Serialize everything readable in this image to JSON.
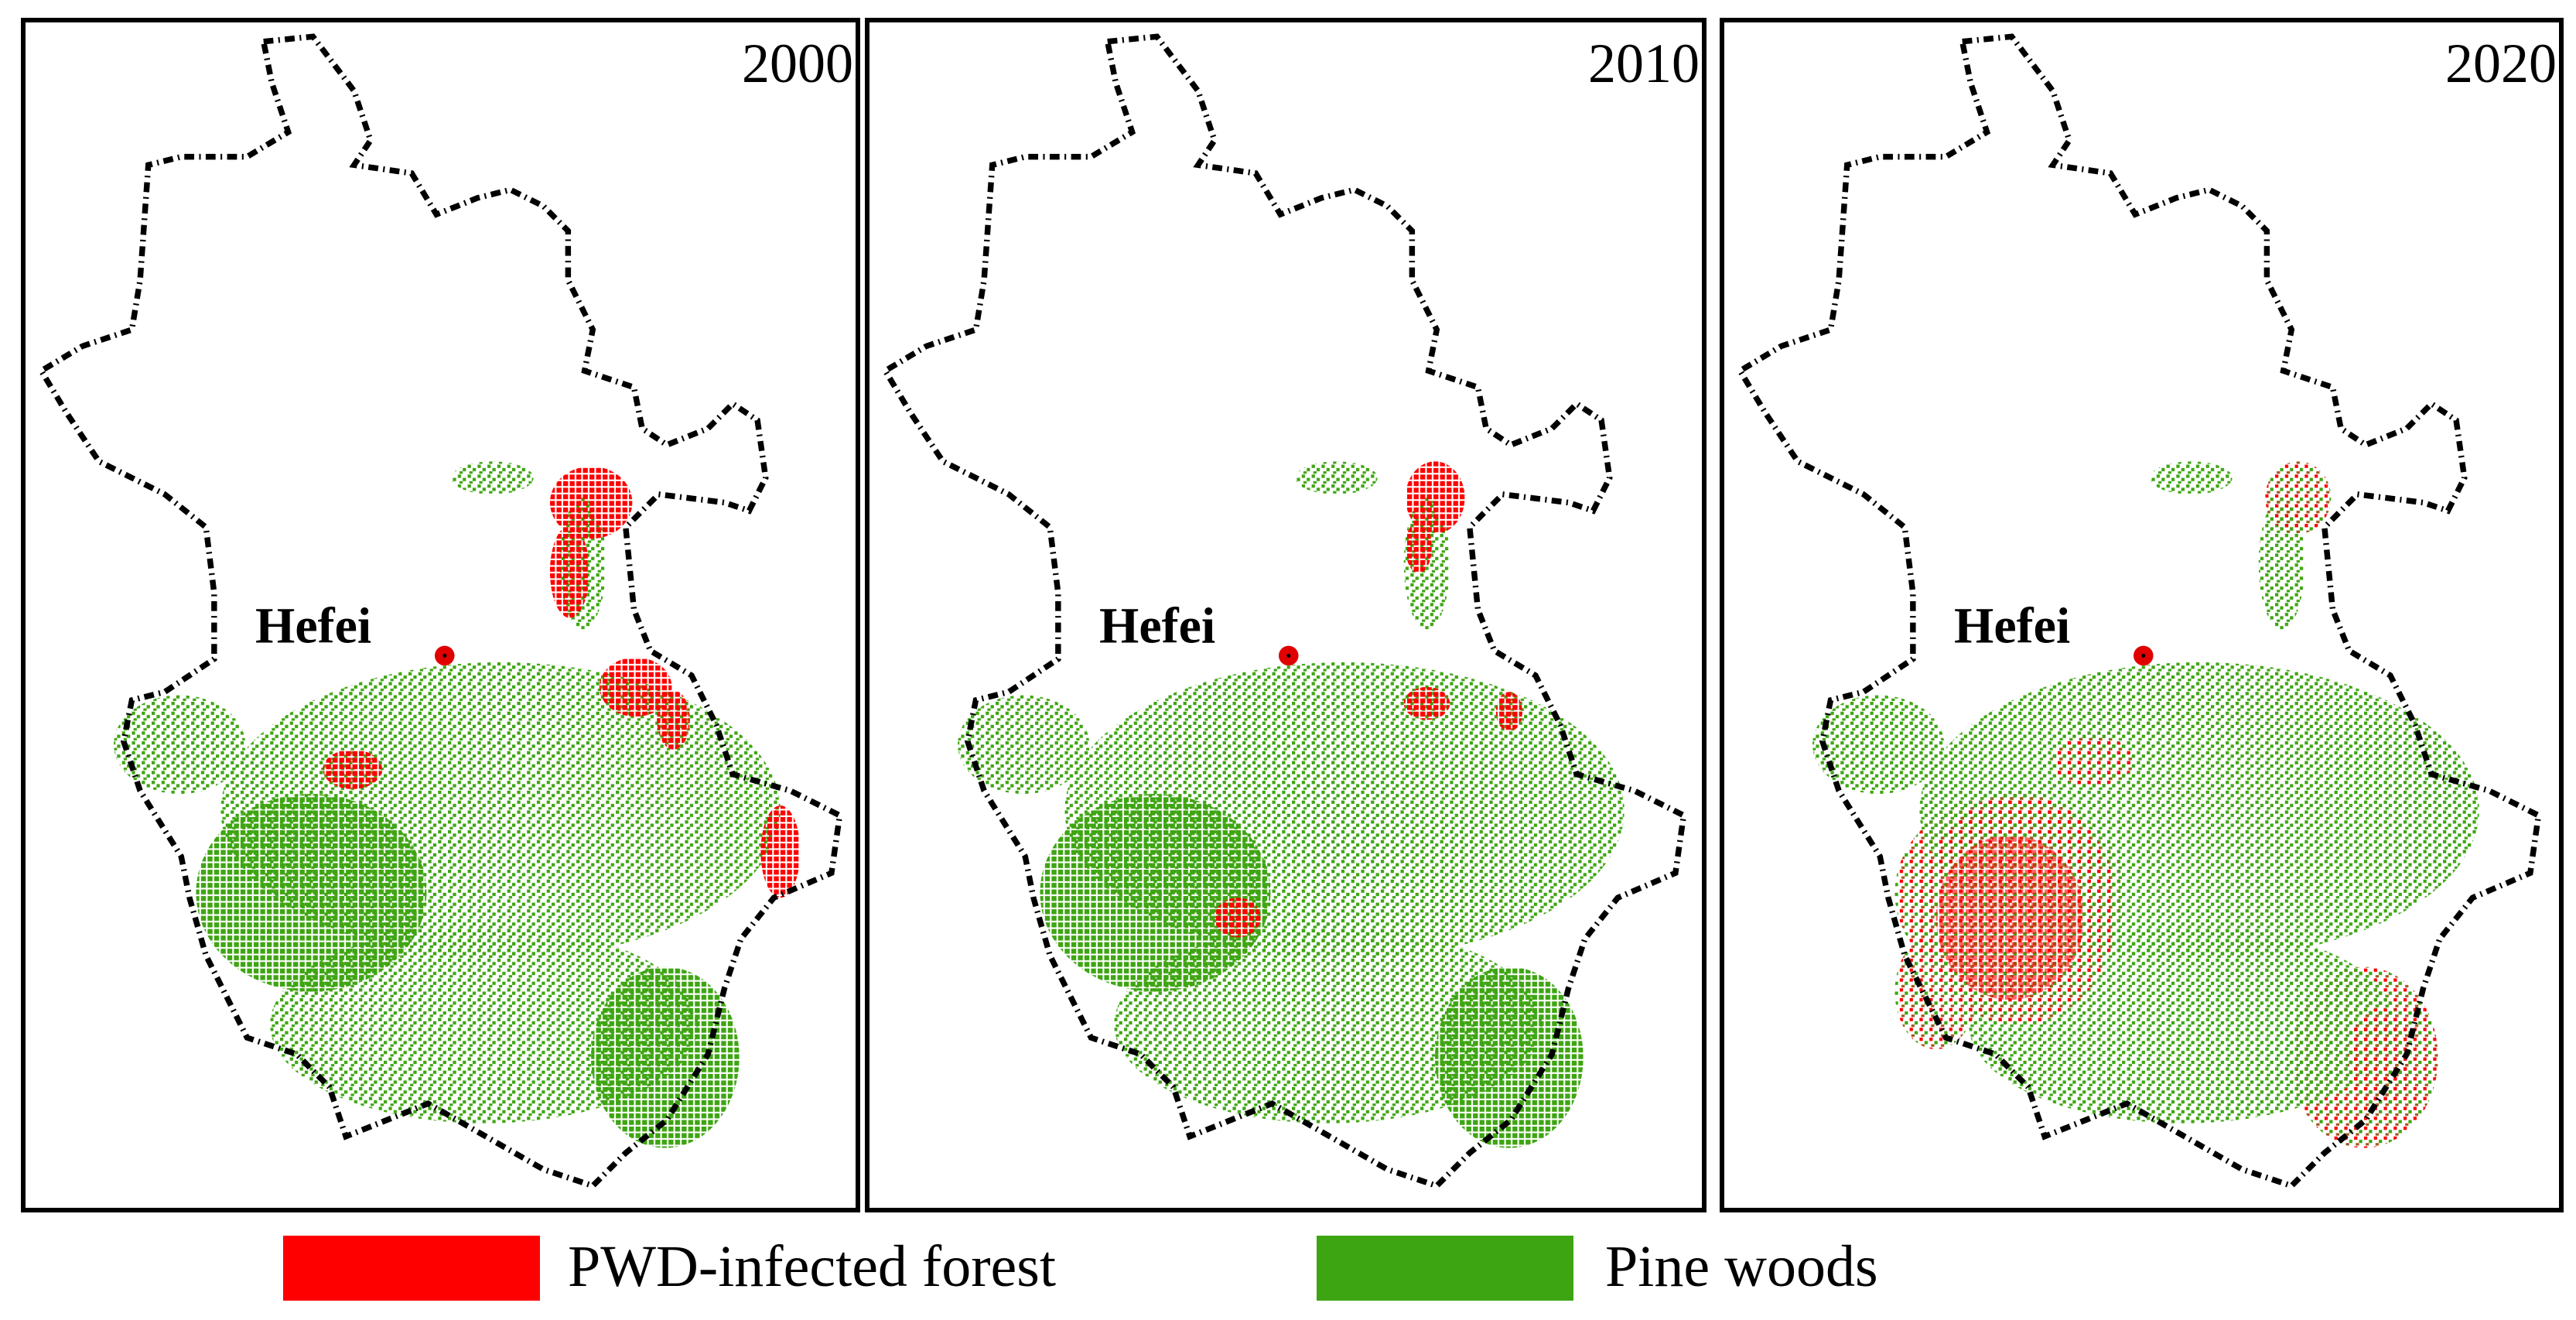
{
  "panels": [
    {
      "year": "2000",
      "city": "Hefei"
    },
    {
      "year": "2010",
      "city": "Hefei"
    },
    {
      "year": "2020",
      "city": "Hefei"
    }
  ],
  "legend": [
    {
      "label": "PWD-infected forest",
      "color": "#ff0000"
    },
    {
      "label": "Pine woods",
      "color": "#3ea512"
    }
  ]
}
